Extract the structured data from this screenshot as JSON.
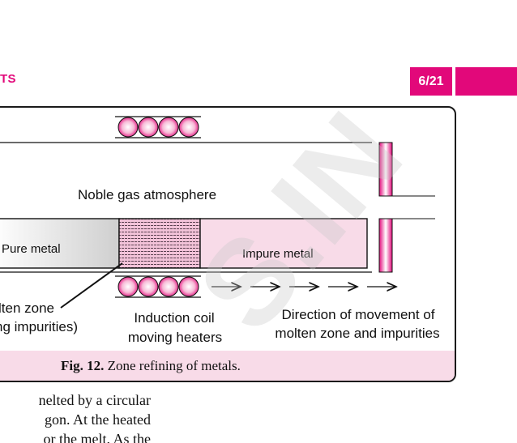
{
  "header": {
    "section_text": "TS",
    "page_number": "6/21",
    "accent_color": "#e2087a"
  },
  "figure": {
    "labels": {
      "atmosphere": "Noble gas atmosphere",
      "pure_metal": "Pure metal",
      "impure_metal": "Impure metal",
      "molten_zone_line1": "lten zone",
      "molten_zone_line2": "ng impurities)",
      "induction_line1": "Induction coil",
      "induction_line2": "moving heaters",
      "direction_line1": "Direction of movement of",
      "direction_line2": "molten zone and impurities"
    },
    "caption": {
      "label": "Fig. 12.",
      "text": " Zone refining of metals."
    },
    "colors": {
      "pink": "#e2087a",
      "light_pink": "#f8dbe8",
      "coil_pink": "#f19ac4"
    }
  },
  "body_text": {
    "line1": "nelted by a circular",
    "line2": "gon. At the heated",
    "line3": "or the melt. As the"
  },
  "watermark": {
    "text": "S.IN"
  }
}
